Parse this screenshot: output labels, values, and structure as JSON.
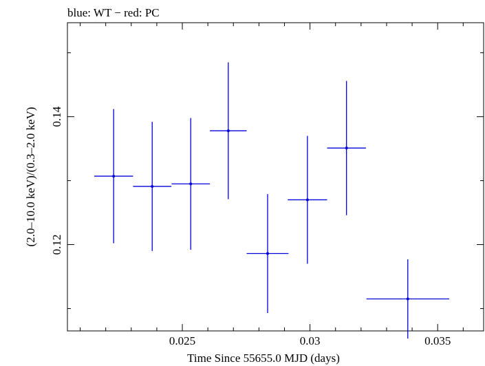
{
  "chart_data": {
    "type": "scatter",
    "title": "blue: WT − red: PC",
    "xlabel": "Time Since 55655.0 MJD (days)",
    "ylabel": "(2.0–10.0 keV)/(0.3–2.0 keV)",
    "xlim": [
      0.0205,
      0.0368
    ],
    "ylim": [
      0.1065,
      0.1547
    ],
    "x_ticks": [
      0.025,
      0.03,
      0.035
    ],
    "x_tick_labels": [
      "0.025",
      "0.03",
      "0.035"
    ],
    "y_ticks": [
      0.12,
      0.14
    ],
    "y_tick_labels": [
      "0.12",
      "0.14"
    ],
    "grid": false,
    "series": [
      {
        "color": "#0000dd",
        "points": [
          {
            "x": 0.02231,
            "y": 0.1307,
            "xerr": 0.00076,
            "yerr": 0.0105
          },
          {
            "x": 0.02382,
            "y": 0.1291,
            "xerr": 0.00075,
            "yerr": 0.0101
          },
          {
            "x": 0.02533,
            "y": 0.1295,
            "xerr": 0.00075,
            "yerr": 0.0103
          },
          {
            "x": 0.0268,
            "y": 0.1378,
            "xerr": 0.00072,
            "yerr": 0.0107
          },
          {
            "x": 0.02834,
            "y": 0.1186,
            "xerr": 0.00082,
            "yerr": 0.0093
          },
          {
            "x": 0.0299,
            "y": 0.127,
            "xerr": 0.00077,
            "yerr": 0.01
          },
          {
            "x": 0.03143,
            "y": 0.1351,
            "xerr": 0.00076,
            "yerr": 0.0105
          },
          {
            "x": 0.03383,
            "y": 0.1115,
            "xerr": 0.00162,
            "yerr": 0.0062
          }
        ]
      }
    ]
  }
}
